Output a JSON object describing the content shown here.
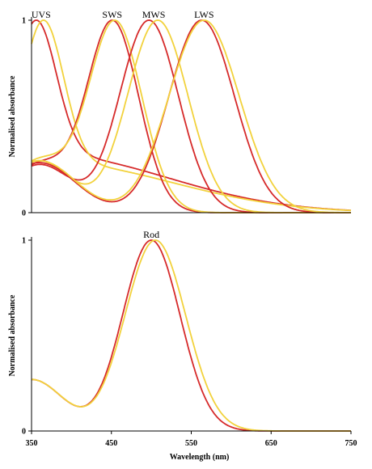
{
  "chart_data": [
    {
      "type": "line",
      "title": "",
      "xlabel": "",
      "ylabel": "Normalised absorbance",
      "xlim": [
        350,
        750
      ],
      "ylim": [
        0,
        1
      ],
      "x_ticks": [],
      "y_ticks": [
        0,
        1
      ],
      "y_tick_labels": [
        "0",
        "1"
      ],
      "annotations": [
        {
          "text": "UVS",
          "x": 362,
          "y": 1.0
        },
        {
          "text": "SWS",
          "x": 451,
          "y": 1.0
        },
        {
          "text": "MWS",
          "x": 503,
          "y": 1.0
        },
        {
          "text": "LWS",
          "x": 566,
          "y": 1.0
        }
      ],
      "series": [
        {
          "color": "#d62a2a",
          "lambda_max": 356,
          "width_nm": 25,
          "beta": 0.3,
          "beta_peak": 370,
          "beta_width": 150
        },
        {
          "color": "#f2d23c",
          "lambda_max": 365,
          "width_nm": 25,
          "beta": 0.26,
          "beta_peak": 375,
          "beta_width": 150
        },
        {
          "color": "#d62a2a",
          "lambda_max": 451,
          "width_nm": 33,
          "beta": 0.25,
          "beta_peak": 360,
          "beta_width": 40
        },
        {
          "color": "#f2d23c",
          "lambda_max": 454,
          "width_nm": 34,
          "beta": 0.27,
          "beta_peak": 360,
          "beta_width": 40
        },
        {
          "color": "#d62a2a",
          "lambda_max": 497,
          "width_nm": 37,
          "beta": 0.25,
          "beta_peak": 360,
          "beta_width": 40
        },
        {
          "color": "#f2d23c",
          "lambda_max": 508,
          "width_nm": 38,
          "beta": 0.27,
          "beta_peak": 360,
          "beta_width": 40
        },
        {
          "color": "#d62a2a",
          "lambda_max": 563,
          "width_nm": 41,
          "beta": 0.26,
          "beta_peak": 360,
          "beta_width": 45
        },
        {
          "color": "#f2d23c",
          "lambda_max": 566,
          "width_nm": 44,
          "beta": 0.27,
          "beta_peak": 360,
          "beta_width": 45
        }
      ]
    },
    {
      "type": "line",
      "title": "",
      "xlabel": "Wavelength (nm)",
      "ylabel": "Normalised absorbance",
      "xlim": [
        350,
        750
      ],
      "ylim": [
        0,
        1
      ],
      "x_ticks": [
        350,
        450,
        550,
        650,
        750
      ],
      "x_tick_labels": [
        "350",
        "450",
        "550",
        "650",
        "750"
      ],
      "y_ticks": [
        0,
        1
      ],
      "y_tick_labels": [
        "0",
        "1"
      ],
      "annotations": [
        {
          "text": "Rod",
          "x": 500,
          "y": 1.0
        }
      ],
      "series": [
        {
          "color": "#d62a2a",
          "lambda_max": 500,
          "width_nm": 36,
          "beta": 0.27,
          "beta_peak": 350,
          "beta_width": 40
        },
        {
          "color": "#f2d23c",
          "lambda_max": 505,
          "width_nm": 38,
          "beta": 0.27,
          "beta_peak": 350,
          "beta_width": 40
        }
      ]
    }
  ]
}
